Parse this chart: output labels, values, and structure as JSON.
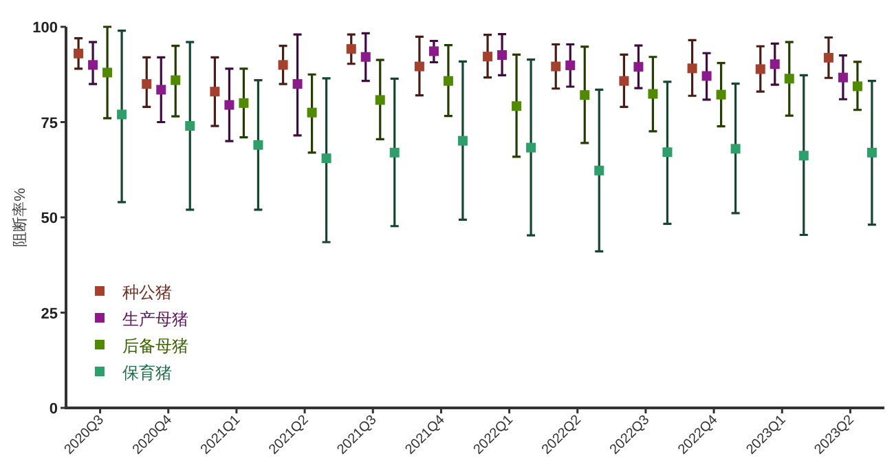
{
  "chart_data": {
    "type": "scatter",
    "ylabel": "阻断率%",
    "categories": [
      "2020Q3",
      "2020Q4",
      "2021Q1",
      "2021Q2",
      "2021Q3",
      "2021Q4",
      "2022Q1",
      "2022Q2",
      "2022Q3",
      "2022Q4",
      "2023Q1",
      "2023Q2"
    ],
    "series": [
      {
        "name": "种公猪",
        "color": "#a3402e",
        "values": [
          93,
          85,
          83,
          90,
          94.2,
          89.6,
          92.2,
          89.6,
          85.8,
          89.1,
          88.9,
          91.9
        ],
        "errors": [
          [
            89,
            97
          ],
          [
            79,
            92
          ],
          [
            74,
            92
          ],
          [
            85,
            95
          ],
          [
            90.3,
            98
          ],
          [
            82,
            97.4
          ],
          [
            86.7,
            97.9
          ],
          [
            83.8,
            95.4
          ],
          [
            79,
            92.7
          ],
          [
            81.9,
            96.5
          ],
          [
            83,
            94.9
          ],
          [
            86.6,
            97.2
          ]
        ]
      },
      {
        "name": "生产母猪",
        "color": "#8b1a8b",
        "values": [
          90,
          83.5,
          79.5,
          85,
          92.1,
          93.6,
          92.6,
          89.9,
          89.5,
          87.1,
          90.2,
          86.7
        ],
        "errors": [
          [
            85,
            96
          ],
          [
            75,
            92
          ],
          [
            70,
            89
          ],
          [
            71.5,
            98
          ],
          [
            85.8,
            98.3
          ],
          [
            90.7,
            96.3
          ],
          [
            87.3,
            98.1
          ],
          [
            84.3,
            95.4
          ],
          [
            83.9,
            95.1
          ],
          [
            80.9,
            93.1
          ],
          [
            84.8,
            95.6
          ],
          [
            81,
            92.5
          ]
        ]
      },
      {
        "name": "后备母猪",
        "color": "#4f8a00",
        "values": [
          88,
          86,
          80,
          77.5,
          80.8,
          85.8,
          79.2,
          82.1,
          82.4,
          82.2,
          86.4,
          84.4
        ],
        "errors": [
          [
            76,
            100
          ],
          [
            76.5,
            95
          ],
          [
            71,
            89
          ],
          [
            67,
            87.5
          ],
          [
            70.5,
            91.3
          ],
          [
            76.6,
            95.2
          ],
          [
            65.9,
            92.7
          ],
          [
            69.5,
            94.8
          ],
          [
            72.6,
            92.1
          ],
          [
            73.9,
            90.5
          ],
          [
            76.7,
            96
          ],
          [
            78.2,
            90.8
          ]
        ]
      },
      {
        "name": "保育猪",
        "color": "#2e9e6a",
        "values": [
          77,
          74,
          69,
          65.5,
          67,
          70.1,
          68.3,
          62.3,
          67.1,
          68,
          66.2,
          67
        ],
        "errors": [
          [
            54,
            99
          ],
          [
            52,
            96
          ],
          [
            52,
            86
          ],
          [
            43.5,
            86.5
          ],
          [
            47.7,
            86.4
          ],
          [
            49.4,
            90.9
          ],
          [
            45.3,
            91.4
          ],
          [
            41.1,
            83.5
          ],
          [
            48.3,
            85.6
          ],
          [
            51.1,
            85.1
          ],
          [
            45.4,
            87.3
          ],
          [
            48.1,
            85.8
          ]
        ]
      }
    ],
    "ylim": [
      0,
      100
    ],
    "yticks": [
      0,
      25,
      50,
      75,
      100
    ],
    "grid": false,
    "legend": "bottom left",
    "marker": "square"
  }
}
